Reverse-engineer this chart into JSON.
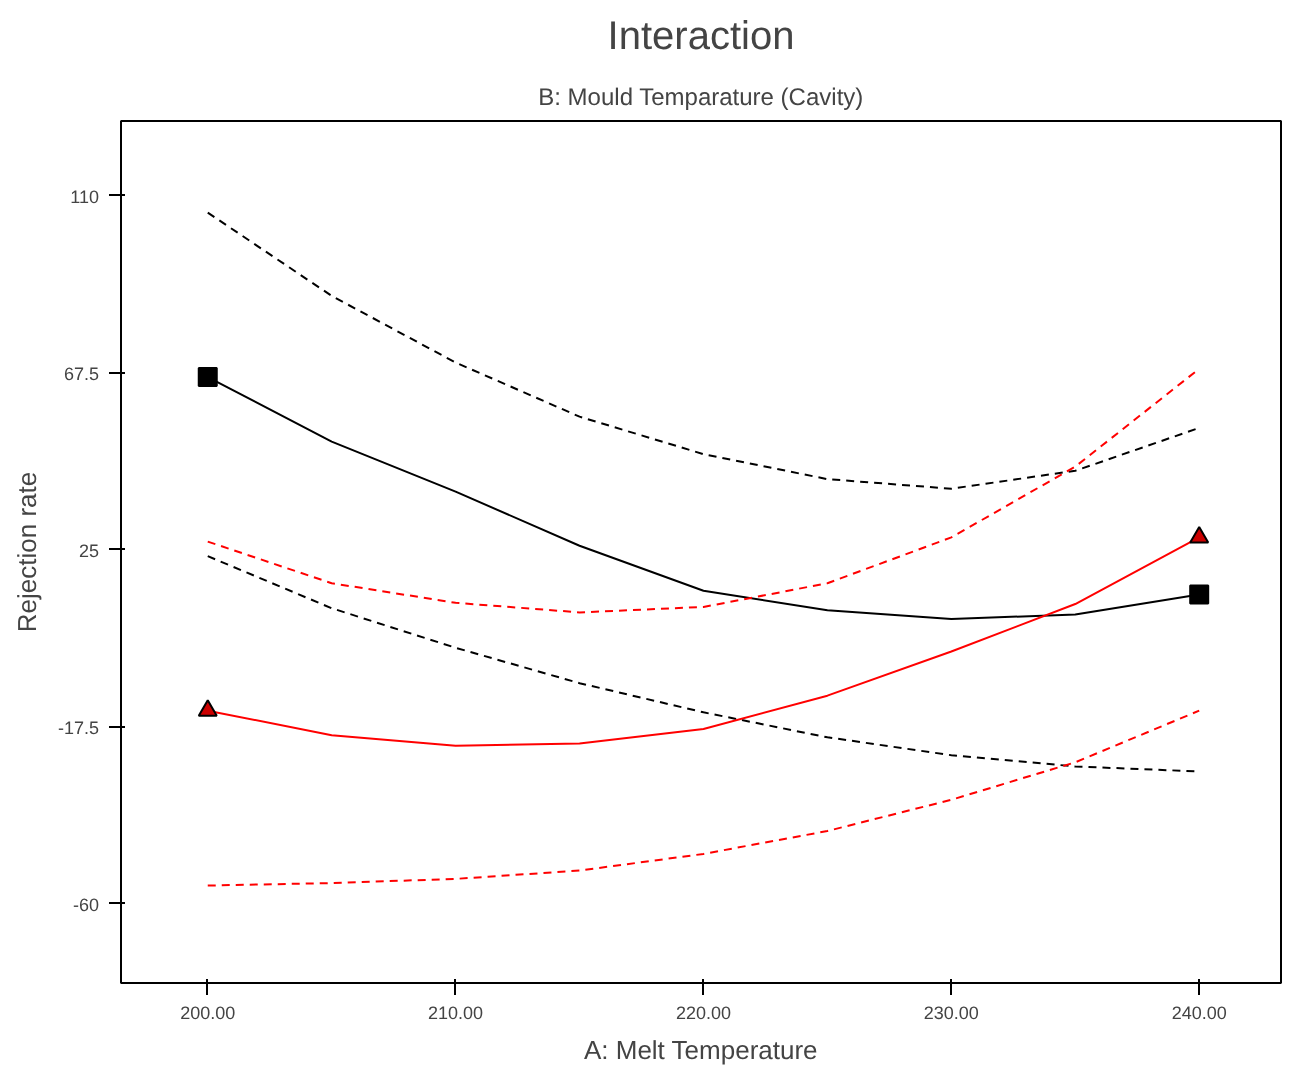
{
  "chart_data": {
    "type": "line",
    "title": "Interaction",
    "subtitle": "B: Mould Temparature (Cavity)",
    "xlabel": "A: Melt Temperature",
    "ylabel": "Rejection rate",
    "xlim": [
      196.5,
      243.3
    ],
    "ylim": [
      -79,
      128
    ],
    "xticks": [
      {
        "value": 200,
        "label": "200.00"
      },
      {
        "value": 210,
        "label": "210.00"
      },
      {
        "value": 220,
        "label": "220.00"
      },
      {
        "value": 230,
        "label": "230.00"
      },
      {
        "value": 240,
        "label": "240.00"
      }
    ],
    "yticks": [
      -60,
      -17.5,
      25,
      67.5,
      110
    ],
    "grid": false,
    "series": [
      {
        "color": "#000000",
        "line_style": "solid",
        "x": [
          200,
          205,
          210,
          215,
          220,
          225,
          230,
          235,
          240
        ],
        "values": [
          66.5,
          51,
          39,
          26,
          15.2,
          10.5,
          8.4,
          9.5,
          14.3
        ]
      },
      {
        "color": "#000000",
        "line_style": "dashed",
        "x": [
          200,
          205,
          210,
          215,
          220,
          225,
          230,
          235,
          240
        ],
        "values": [
          106,
          86,
          70,
          57,
          48,
          42,
          39.7,
          44,
          54.3
        ]
      },
      {
        "color": "#000000",
        "line_style": "dashed",
        "x": [
          200,
          205,
          210,
          215,
          220,
          225,
          230,
          235,
          240
        ],
        "values": [
          23.5,
          11,
          1.5,
          -7,
          -14,
          -20,
          -24.3,
          -27,
          -28.2
        ]
      },
      {
        "color": "#ff0000",
        "line_style": "solid",
        "x": [
          200,
          205,
          210,
          215,
          220,
          225,
          230,
          235,
          240
        ],
        "values": [
          -13.6,
          -19.5,
          -22,
          -21.5,
          -18,
          -10,
          0.6,
          12,
          28
        ]
      },
      {
        "color": "#ff0000",
        "line_style": "dashed",
        "x": [
          200,
          205,
          210,
          215,
          220,
          225,
          230,
          235,
          240
        ],
        "values": [
          27,
          17,
          12.3,
          10,
          11.3,
          17,
          28,
          45,
          68.5
        ]
      },
      {
        "color": "#ff0000",
        "line_style": "dashed",
        "x": [
          200,
          205,
          210,
          215,
          220,
          225,
          230,
          235,
          240
        ],
        "values": [
          -55.6,
          -55,
          -54,
          -52,
          -48,
          -42.5,
          -35,
          -26,
          -13.6
        ]
      },
      {
        "type": "scatter",
        "marker": "square",
        "color": "#000000",
        "x": [
          200,
          240
        ],
        "values": [
          66.5,
          14.3
        ]
      },
      {
        "type": "scatter",
        "marker": "triangle",
        "color": "#cc0000",
        "x": [
          200,
          240
        ],
        "values": [
          -13.6,
          28
        ]
      }
    ]
  }
}
